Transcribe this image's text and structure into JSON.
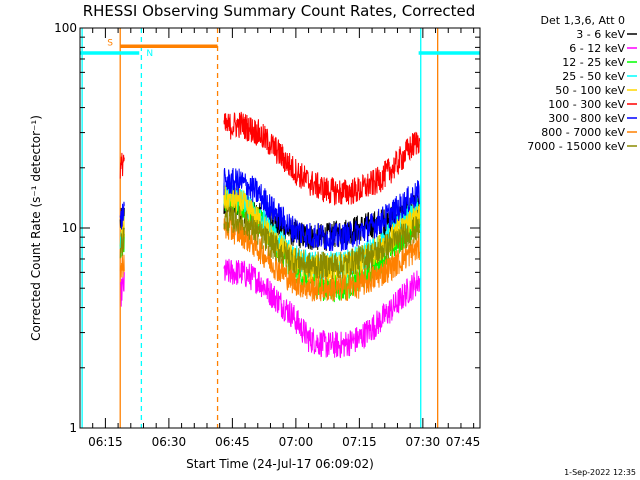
{
  "chart_data": {
    "type": "line",
    "title": "RHESSI Observing Summary Count Rates, Corrected",
    "xlabel": "Start Time (24-Jul-17 06:09:02)",
    "ylabel": "Corrected Count Rate (s⁻¹ detector⁻¹)",
    "y_scale": "log",
    "ylim": [
      1,
      100
    ],
    "y_ticks": [
      1,
      10,
      100
    ],
    "x_range_minutes": [
      0,
      94.5
    ],
    "x_ticks": [
      {
        "label": "06:15",
        "t": 6
      },
      {
        "label": "06:30",
        "t": 21
      },
      {
        "label": "06:45",
        "t": 36
      },
      {
        "label": "07:00",
        "t": 51
      },
      {
        "label": "07:15",
        "t": 66
      },
      {
        "label": "07:30",
        "t": 81
      },
      {
        "label": "07:45",
        "t": 96
      }
    ],
    "legend_title": "Det 1,3,6, Att 0",
    "legend_placement": "right",
    "flags": [
      {
        "label": "S",
        "color": "#ff8000",
        "y": 81,
        "t_start": 9.5,
        "t_end": 32.5
      },
      {
        "label": "N",
        "color": "#00ffff",
        "y": 75,
        "t_start": 0,
        "t_end": 14
      },
      {
        "label": "",
        "color": "#00ffff",
        "y": 75,
        "t_start": 80,
        "t_end": 95
      }
    ],
    "vertical_markers": [
      {
        "t": 0.5,
        "color": "#00ffff",
        "style": "solid"
      },
      {
        "t": 9.5,
        "color": "#ff8000",
        "style": "solid"
      },
      {
        "t": 14.5,
        "color": "#00ffff",
        "style": "dashed"
      },
      {
        "t": 32.5,
        "color": "#ff8000",
        "style": "dashed"
      },
      {
        "t": 80.5,
        "color": "#00ffff",
        "style": "solid"
      },
      {
        "t": 84.5,
        "color": "#ff8000",
        "style": "solid"
      },
      {
        "t": 95,
        "color": "#00ffff",
        "style": "dashed"
      }
    ],
    "series": [
      {
        "name": "3 - 6 keV",
        "color": "#000000",
        "segment1": {
          "t": [
            9.5,
            10.0,
            10.5
          ],
          "y": [
            10.5,
            11.0,
            11.5
          ]
        },
        "segment2": {
          "t": [
            34,
            38,
            42,
            46,
            50,
            54,
            58,
            62,
            66,
            70,
            74,
            78,
            80.3
          ],
          "y": [
            13,
            12.5,
            11.5,
            10.5,
            9.5,
            9,
            9,
            9.5,
            10,
            10.5,
            11,
            12.5,
            13
          ]
        }
      },
      {
        "name": "6 - 12 keV",
        "color": "#ff00ff",
        "segment1": {
          "t": [
            9.5,
            10.0,
            10.5
          ],
          "y": [
            4.5,
            5.0,
            5.2
          ]
        },
        "segment2": {
          "t": [
            34,
            38,
            42,
            46,
            50,
            54,
            58,
            62,
            66,
            70,
            74,
            78,
            80.3
          ],
          "y": [
            6,
            6,
            5.5,
            4.5,
            3.7,
            2.8,
            2.6,
            2.6,
            2.8,
            3.3,
            4,
            5,
            5.5
          ]
        }
      },
      {
        "name": "12 - 25 keV",
        "color": "#00ff00",
        "segment1": {
          "t": [
            9.5,
            10.0,
            10.5
          ],
          "y": [
            8.0,
            8.5,
            9.0
          ]
        },
        "segment2": {
          "t": [
            34,
            38,
            42,
            46,
            50,
            54,
            58,
            62,
            66,
            70,
            74,
            78,
            80.3
          ],
          "y": [
            14,
            13.5,
            11,
            8.5,
            6.5,
            5.5,
            5,
            5,
            5.5,
            6.5,
            8,
            10,
            11
          ]
        }
      },
      {
        "name": "25 - 50 keV",
        "color": "#00ffff",
        "segment1": {
          "t": [
            9.5,
            10.0,
            10.5
          ],
          "y": [
            9.0,
            9.5,
            10.0
          ]
        },
        "segment2": {
          "t": [
            34,
            38,
            42,
            46,
            50,
            54,
            58,
            62,
            66,
            70,
            74,
            78,
            80.3
          ],
          "y": [
            14.5,
            14,
            11.5,
            9,
            7.5,
            6.5,
            6.5,
            6.5,
            7,
            8,
            9.5,
            11.5,
            12.5
          ]
        }
      },
      {
        "name": "50 - 100 keV",
        "color": "#ffd700",
        "segment1": {
          "t": [
            9.5,
            10.0,
            10.5
          ],
          "y": [
            9.0,
            9.5,
            10.0
          ]
        },
        "segment2": {
          "t": [
            34,
            38,
            42,
            46,
            50,
            54,
            58,
            62,
            66,
            70,
            74,
            78,
            80.3
          ],
          "y": [
            14,
            13.5,
            11,
            8.5,
            7,
            6.3,
            6.3,
            6.3,
            6.8,
            7.8,
            9,
            11,
            12
          ]
        }
      },
      {
        "name": "100 - 300 keV",
        "color": "#ff0000",
        "segment1": {
          "t": [
            9.5,
            10.0,
            10.5
          ],
          "y": [
            19,
            21,
            23
          ]
        },
        "segment2": {
          "t": [
            34,
            38,
            42,
            46,
            50,
            54,
            58,
            62,
            66,
            70,
            74,
            78,
            80.3
          ],
          "y": [
            32,
            33,
            30,
            25,
            20,
            17,
            15.5,
            15,
            15.5,
            17,
            20,
            25,
            28
          ]
        }
      },
      {
        "name": "300 - 800 keV",
        "color": "#0000ff",
        "segment1": {
          "t": [
            9.5,
            10.0,
            10.5
          ],
          "y": [
            10.5,
            11.5,
            12.5
          ]
        },
        "segment2": {
          "t": [
            34,
            38,
            42,
            46,
            50,
            54,
            58,
            62,
            66,
            70,
            74,
            78,
            80.3
          ],
          "y": [
            17,
            17,
            15,
            12,
            10,
            9.2,
            9,
            9,
            9.5,
            10.5,
            12,
            14,
            15
          ]
        }
      },
      {
        "name": "800 - 7000 keV",
        "color": "#ff8000",
        "segment1": {
          "t": [
            9.5,
            10.0,
            10.5
          ],
          "y": [
            6.0,
            6.5,
            7.0
          ]
        },
        "segment2": {
          "t": [
            34,
            38,
            42,
            46,
            50,
            54,
            58,
            62,
            66,
            70,
            74,
            78,
            80.3
          ],
          "y": [
            10,
            9.5,
            8,
            6.5,
            5.5,
            5,
            5,
            5,
            5.2,
            5.7,
            6.5,
            7.5,
            8
          ]
        }
      },
      {
        "name": "7000 - 15000 keV",
        "color": "#8b8b00",
        "segment1": {
          "t": [
            9.5,
            10.0,
            10.5
          ],
          "y": [
            8.0,
            8.5,
            9.0
          ]
        },
        "segment2": {
          "t": [
            34,
            38,
            42,
            46,
            50,
            54,
            58,
            62,
            66,
            70,
            74,
            78,
            80.3
          ],
          "y": [
            11,
            11,
            9.5,
            8,
            7,
            6.5,
            6.5,
            6.5,
            7,
            7.5,
            8.5,
            9.5,
            10
          ]
        }
      }
    ],
    "timestamp": "1-Sep-2022 12:35"
  }
}
